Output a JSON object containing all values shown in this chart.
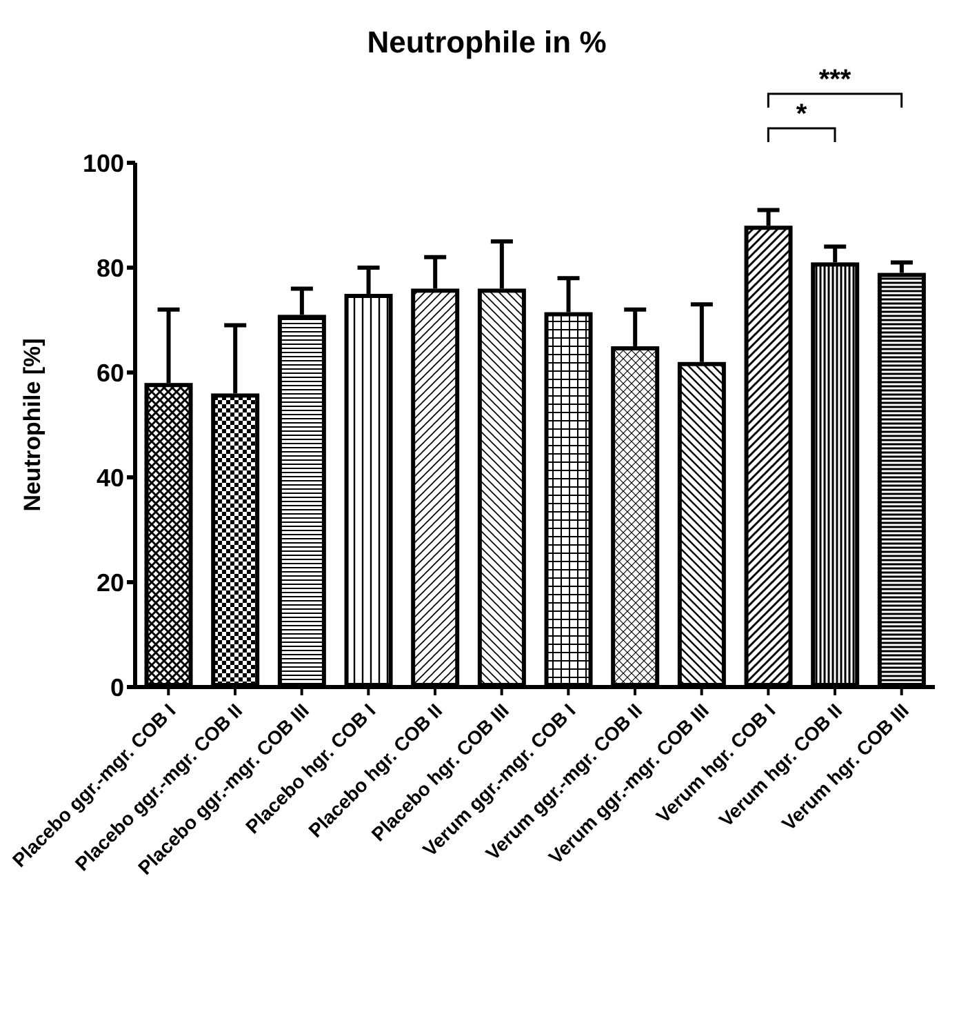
{
  "chart_data": {
    "type": "bar",
    "title": "Neutrophile in %",
    "ylabel": "Neutrophile [%]",
    "categories": [
      "Placebo ggr.-mgr. COB I",
      "Placebo ggr.-mgr. COB II",
      "Placebo ggr.-mgr. COB III",
      "Placebo hgr. COB I",
      "Placebo hgr. COB II",
      "Placebo hgr. COB III",
      "Verum ggr.-mgr. COB I",
      "Verum ggr.-mgr. COB II",
      "Verum ggr.-mgr. COB III",
      "Verum hgr. COB I",
      "Verum hgr. COB II",
      "Verum hgr. COB III"
    ],
    "values": [
      58,
      56,
      71,
      75,
      76,
      76,
      71.5,
      65,
      62,
      88,
      81,
      79
    ],
    "errors": [
      [
        58,
        72
      ],
      [
        56,
        69
      ],
      [
        71,
        76
      ],
      [
        75,
        80
      ],
      [
        76,
        82
      ],
      [
        76,
        85
      ],
      [
        71.5,
        78
      ],
      [
        65,
        72
      ],
      [
        62,
        73
      ],
      [
        88,
        91
      ],
      [
        81,
        84
      ],
      [
        79,
        81
      ]
    ],
    "colors": [
      "#000000",
      "#000000",
      "#000000",
      "#000000",
      "#000000",
      "#000000",
      "#000000",
      "#000000",
      "#000000",
      "#000000",
      "#000000",
      "#000000"
    ],
    "ylim": [
      0,
      100
    ],
    "yticks": [
      0,
      20,
      40,
      60,
      80,
      100
    ],
    "grid": false,
    "legend": false,
    "annotations": [
      "*",
      "***"
    ]
  }
}
